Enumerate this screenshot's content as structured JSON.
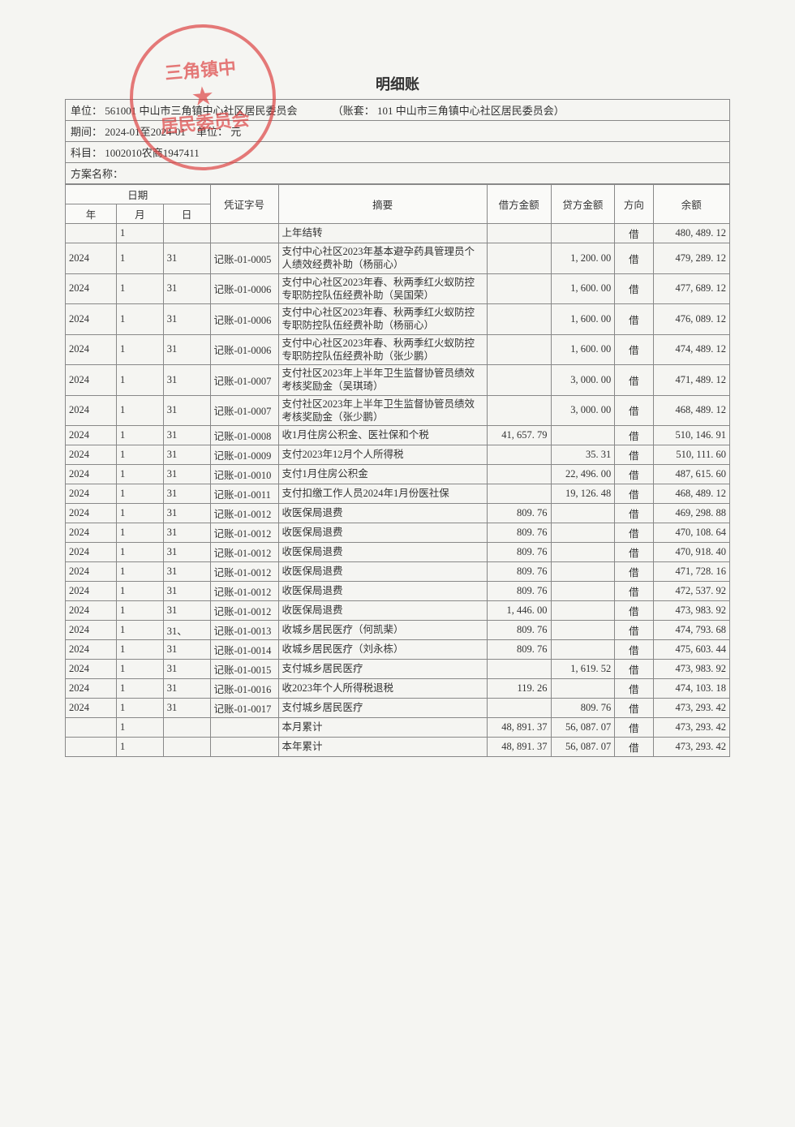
{
  "title": "明细账",
  "header": {
    "unit_label": "单位：",
    "unit_code": "561001",
    "unit_name": "中山市三角镇中心社区居民委员会",
    "account_set_label": "（账套：",
    "account_set": "101 中山市三角镇中心社区居民委员会）",
    "period_label": "期间：",
    "period": "2024-01至2024-01",
    "currency_label": "单位：",
    "currency": "元",
    "subject_label": "科目：",
    "subject": "1002010农商1947411",
    "plan_label": "方案名称："
  },
  "columns": {
    "date_group": "日期",
    "year": "年",
    "month": "月",
    "day": "日",
    "voucher": "凭证字号",
    "summary": "摘要",
    "debit": "借方金额",
    "credit": "贷方金额",
    "direction": "方向",
    "balance": "余额"
  },
  "rows": [
    {
      "year": "",
      "month": "1",
      "day": "",
      "voucher": "",
      "summary": "上年结转",
      "debit": "",
      "credit": "",
      "direction": "借",
      "balance": "480, 489. 12"
    },
    {
      "year": "2024",
      "month": "1",
      "day": "31",
      "voucher": "记账-01-0005",
      "summary": "支付中心社区2023年基本避孕药具管理员个人绩效经费补助（杨丽心）",
      "debit": "",
      "credit": "1, 200. 00",
      "direction": "借",
      "balance": "479, 289. 12"
    },
    {
      "year": "2024",
      "month": "1",
      "day": "31",
      "voucher": "记账-01-0006",
      "summary": "支付中心社区2023年春、秋两季红火蚁防控专职防控队伍经费补助（吴国荣）",
      "debit": "",
      "credit": "1, 600. 00",
      "direction": "借",
      "balance": "477, 689. 12"
    },
    {
      "year": "2024",
      "month": "1",
      "day": "31",
      "voucher": "记账-01-0006",
      "summary": "支付中心社区2023年春、秋两季红火蚁防控专职防控队伍经费补助（杨丽心）",
      "debit": "",
      "credit": "1, 600. 00",
      "direction": "借",
      "balance": "476, 089. 12"
    },
    {
      "year": "2024",
      "month": "1",
      "day": "31",
      "voucher": "记账-01-0006",
      "summary": "支付中心社区2023年春、秋两季红火蚁防控专职防控队伍经费补助（张少鹏）",
      "debit": "",
      "credit": "1, 600. 00",
      "direction": "借",
      "balance": "474, 489. 12"
    },
    {
      "year": "2024",
      "month": "1",
      "day": "31",
      "voucher": "记账-01-0007",
      "summary": "支付社区2023年上半年卫生监督协管员绩效考核奖励金（吴琪琦）",
      "debit": "",
      "credit": "3, 000. 00",
      "direction": "借",
      "balance": "471, 489. 12"
    },
    {
      "year": "2024",
      "month": "1",
      "day": "31",
      "voucher": "记账-01-0007",
      "summary": "支付社区2023年上半年卫生监督协管员绩效考核奖励金（张少鹏）",
      "debit": "",
      "credit": "3, 000. 00",
      "direction": "借",
      "balance": "468, 489. 12"
    },
    {
      "year": "2024",
      "month": "1",
      "day": "31",
      "voucher": "记账-01-0008",
      "summary": "收1月住房公积金、医社保和个税",
      "debit": "41, 657. 79",
      "credit": "",
      "direction": "借",
      "balance": "510, 146. 91"
    },
    {
      "year": "2024",
      "month": "1",
      "day": "31",
      "voucher": "记账-01-0009",
      "summary": "支付2023年12月个人所得税",
      "debit": "",
      "credit": "35. 31",
      "direction": "借",
      "balance": "510, 111. 60"
    },
    {
      "year": "2024",
      "month": "1",
      "day": "31",
      "voucher": "记账-01-0010",
      "summary": "支付1月住房公积金",
      "debit": "",
      "credit": "22, 496. 00",
      "direction": "借",
      "balance": "487, 615. 60"
    },
    {
      "year": "2024",
      "month": "1",
      "day": "31",
      "voucher": "记账-01-0011",
      "summary": "支付扣缴工作人员2024年1月份医社保",
      "debit": "",
      "credit": "19, 126. 48",
      "direction": "借",
      "balance": "468, 489. 12"
    },
    {
      "year": "2024",
      "month": "1",
      "day": "31",
      "voucher": "记账-01-0012",
      "summary": "收医保局退费",
      "debit": "809. 76",
      "credit": "",
      "direction": "借",
      "balance": "469, 298. 88"
    },
    {
      "year": "2024",
      "month": "1",
      "day": "31",
      "voucher": "记账-01-0012",
      "summary": "收医保局退费",
      "debit": "809. 76",
      "credit": "",
      "direction": "借",
      "balance": "470, 108. 64"
    },
    {
      "year": "2024",
      "month": "1",
      "day": "31",
      "voucher": "记账-01-0012",
      "summary": "收医保局退费",
      "debit": "809. 76",
      "credit": "",
      "direction": "借",
      "balance": "470, 918. 40"
    },
    {
      "year": "2024",
      "month": "1",
      "day": "31",
      "voucher": "记账-01-0012",
      "summary": "收医保局退费",
      "debit": "809. 76",
      "credit": "",
      "direction": "借",
      "balance": "471, 728. 16"
    },
    {
      "year": "2024",
      "month": "1",
      "day": "31",
      "voucher": "记账-01-0012",
      "summary": "收医保局退费",
      "debit": "809. 76",
      "credit": "",
      "direction": "借",
      "balance": "472, 537. 92"
    },
    {
      "year": "2024",
      "month": "1",
      "day": "31",
      "voucher": "记账-01-0012",
      "summary": "收医保局退费",
      "debit": "1, 446. 00",
      "credit": "",
      "direction": "借",
      "balance": "473, 983. 92"
    },
    {
      "year": "2024",
      "month": "1",
      "day": "31、",
      "voucher": "记账-01-0013",
      "summary": "收城乡居民医疗（何凯棐）",
      "debit": "809. 76",
      "credit": "",
      "direction": "借",
      "balance": "474, 793. 68"
    },
    {
      "year": "2024",
      "month": "1",
      "day": "31",
      "voucher": "记账-01-0014",
      "summary": "收城乡居民医疗（刘永栋）",
      "debit": "809. 76",
      "credit": "",
      "direction": "借",
      "balance": "475, 603. 44"
    },
    {
      "year": "2024",
      "month": "1",
      "day": "31",
      "voucher": "记账-01-0015",
      "summary": "支付城乡居民医疗",
      "debit": "",
      "credit": "1, 619. 52",
      "direction": "借",
      "balance": "473, 983. 92"
    },
    {
      "year": "2024",
      "month": "1",
      "day": "31",
      "voucher": "记账-01-0016",
      "summary": "收2023年个人所得税退税",
      "debit": "119. 26",
      "credit": "",
      "direction": "借",
      "balance": "474, 103. 18"
    },
    {
      "year": "2024",
      "month": "1",
      "day": "31",
      "voucher": "记账-01-0017",
      "summary": "支付城乡居民医疗",
      "debit": "",
      "credit": "809. 76",
      "direction": "借",
      "balance": "473, 293. 42"
    },
    {
      "year": "",
      "month": "1",
      "day": "",
      "voucher": "",
      "summary": "本月累计",
      "debit": "48, 891. 37",
      "credit": "56, 087. 07",
      "direction": "借",
      "balance": "473, 293. 42"
    },
    {
      "year": "",
      "month": "1",
      "day": "",
      "voucher": "",
      "summary": "本年累计",
      "debit": "48, 891. 37",
      "credit": "56, 087. 07",
      "direction": "借",
      "balance": "473, 293. 42"
    }
  ],
  "stamp_text_top": "三角镇中",
  "stamp_text_bottom": "居民委员会",
  "colors": {
    "border": "#888888",
    "background": "#f5f5f2",
    "stamp": "#d44444",
    "text": "#333333"
  }
}
